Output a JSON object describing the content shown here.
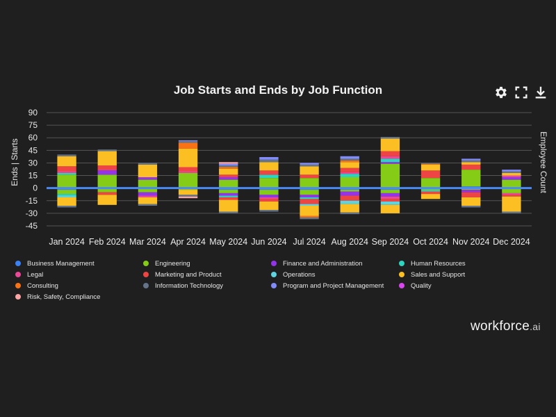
{
  "chart_data": {
    "type": "bar",
    "stacked": true,
    "title": "Job Starts and Ends by Job Function",
    "ylabel": "Ends | Starts",
    "y2label": "Employee Count",
    "yticks": [
      90,
      75,
      60,
      45,
      30,
      15,
      0,
      -15,
      -30,
      -45
    ],
    "ylim": [
      -45,
      90
    ],
    "categories": [
      "Jan 2024",
      "Feb 2024",
      "Mar 2024",
      "Apr 2024",
      "May 2024",
      "Jun 2024",
      "Jul 2024",
      "Aug 2024",
      "Sep 2024",
      "Oct 2024",
      "Nov 2024",
      "Dec 2024"
    ],
    "series": [
      {
        "name": "Business Management",
        "color": "#3b82f6",
        "starts": [
          1,
          0,
          1,
          1,
          0,
          0,
          1,
          1,
          1,
          0,
          2,
          0
        ],
        "ends": [
          2,
          0,
          0,
          0,
          2,
          2,
          2,
          2,
          2,
          0,
          0,
          0
        ]
      },
      {
        "name": "Engineering",
        "color": "#84cc16",
        "starts": [
          15,
          16,
          9,
          17,
          10,
          12,
          11,
          12,
          28,
          12,
          20,
          10
        ],
        "ends": [
          5,
          5,
          5,
          2,
          4,
          6,
          6,
          2,
          4,
          2,
          2,
          6
        ]
      },
      {
        "name": "Finance and Administration",
        "color": "#9333ea",
        "starts": [
          0,
          5,
          3,
          0,
          3,
          0,
          0,
          0,
          2,
          0,
          0,
          3
        ],
        "ends": [
          0,
          0,
          4,
          0,
          3,
          3,
          3,
          5,
          4,
          0,
          3,
          0
        ]
      },
      {
        "name": "Human Resources",
        "color": "#2dd4bf",
        "starts": [
          2,
          0,
          0,
          0,
          0,
          4,
          0,
          4,
          4,
          0,
          0,
          0
        ],
        "ends": [
          2,
          0,
          0,
          0,
          2,
          0,
          2,
          0,
          0,
          2,
          0,
          0
        ]
      },
      {
        "name": "Legal",
        "color": "#ec4899",
        "starts": [
          2,
          1,
          0,
          2,
          0,
          0,
          0,
          2,
          3,
          0,
          0,
          2
        ],
        "ends": [
          0,
          0,
          2,
          0,
          0,
          2,
          0,
          0,
          3,
          0,
          0,
          2
        ]
      },
      {
        "name": "Marketing and Product",
        "color": "#ef4444",
        "starts": [
          6,
          5,
          0,
          5,
          3,
          5,
          4,
          5,
          6,
          9,
          6,
          0
        ],
        "ends": [
          0,
          3,
          0,
          0,
          3,
          3,
          6,
          6,
          3,
          3,
          6,
          2
        ]
      },
      {
        "name": "Operations",
        "color": "#5ed4e0",
        "starts": [
          0,
          0,
          0,
          0,
          0,
          0,
          0,
          0,
          0,
          0,
          0,
          0
        ],
        "ends": [
          2,
          0,
          0,
          0,
          0,
          0,
          2,
          4,
          4,
          0,
          0,
          0
        ]
      },
      {
        "name": "Sales and Support",
        "color": "#fbbf24",
        "starts": [
          12,
          17,
          15,
          22,
          7,
          10,
          10,
          7,
          15,
          7,
          3,
          3
        ],
        "ends": [
          10,
          12,
          8,
          6,
          14,
          10,
          12,
          10,
          10,
          6,
          10,
          18
        ]
      },
      {
        "name": "Consulting",
        "color": "#f97316",
        "starts": [
          0,
          0,
          0,
          7,
          2,
          0,
          0,
          2,
          0,
          1,
          0,
          0
        ],
        "ends": [
          0,
          0,
          0,
          0,
          0,
          0,
          2,
          0,
          0,
          0,
          0,
          0
        ]
      },
      {
        "name": "Information Technology",
        "color": "#64748b",
        "starts": [
          2,
          2,
          2,
          2,
          2,
          3,
          2,
          2,
          2,
          1,
          2,
          2
        ],
        "ends": [
          2,
          0,
          2,
          2,
          2,
          2,
          2,
          2,
          0,
          0,
          2,
          2
        ]
      },
      {
        "name": "Program and Project Management",
        "color": "#818cf8",
        "starts": [
          0,
          0,
          0,
          1,
          2,
          3,
          2,
          3,
          0,
          0,
          2,
          2
        ],
        "ends": [
          0,
          0,
          0,
          0,
          0,
          0,
          0,
          0,
          0,
          0,
          0,
          0
        ]
      },
      {
        "name": "Quality",
        "color": "#d946ef",
        "starts": [
          0,
          0,
          0,
          0,
          0,
          0,
          0,
          0,
          0,
          0,
          0,
          0
        ],
        "ends": [
          0,
          0,
          0,
          0,
          0,
          0,
          0,
          0,
          0,
          0,
          0,
          0
        ]
      },
      {
        "name": "Risk, Safety, Compliance",
        "color": "#fca5a5",
        "starts": [
          0,
          0,
          0,
          0,
          2,
          0,
          0,
          0,
          0,
          0,
          0,
          0
        ],
        "ends": [
          0,
          0,
          0,
          2,
          0,
          0,
          0,
          0,
          0,
          0,
          0,
          0
        ]
      }
    ]
  },
  "brand": {
    "name": "workforce",
    "suffix": ".ai"
  }
}
